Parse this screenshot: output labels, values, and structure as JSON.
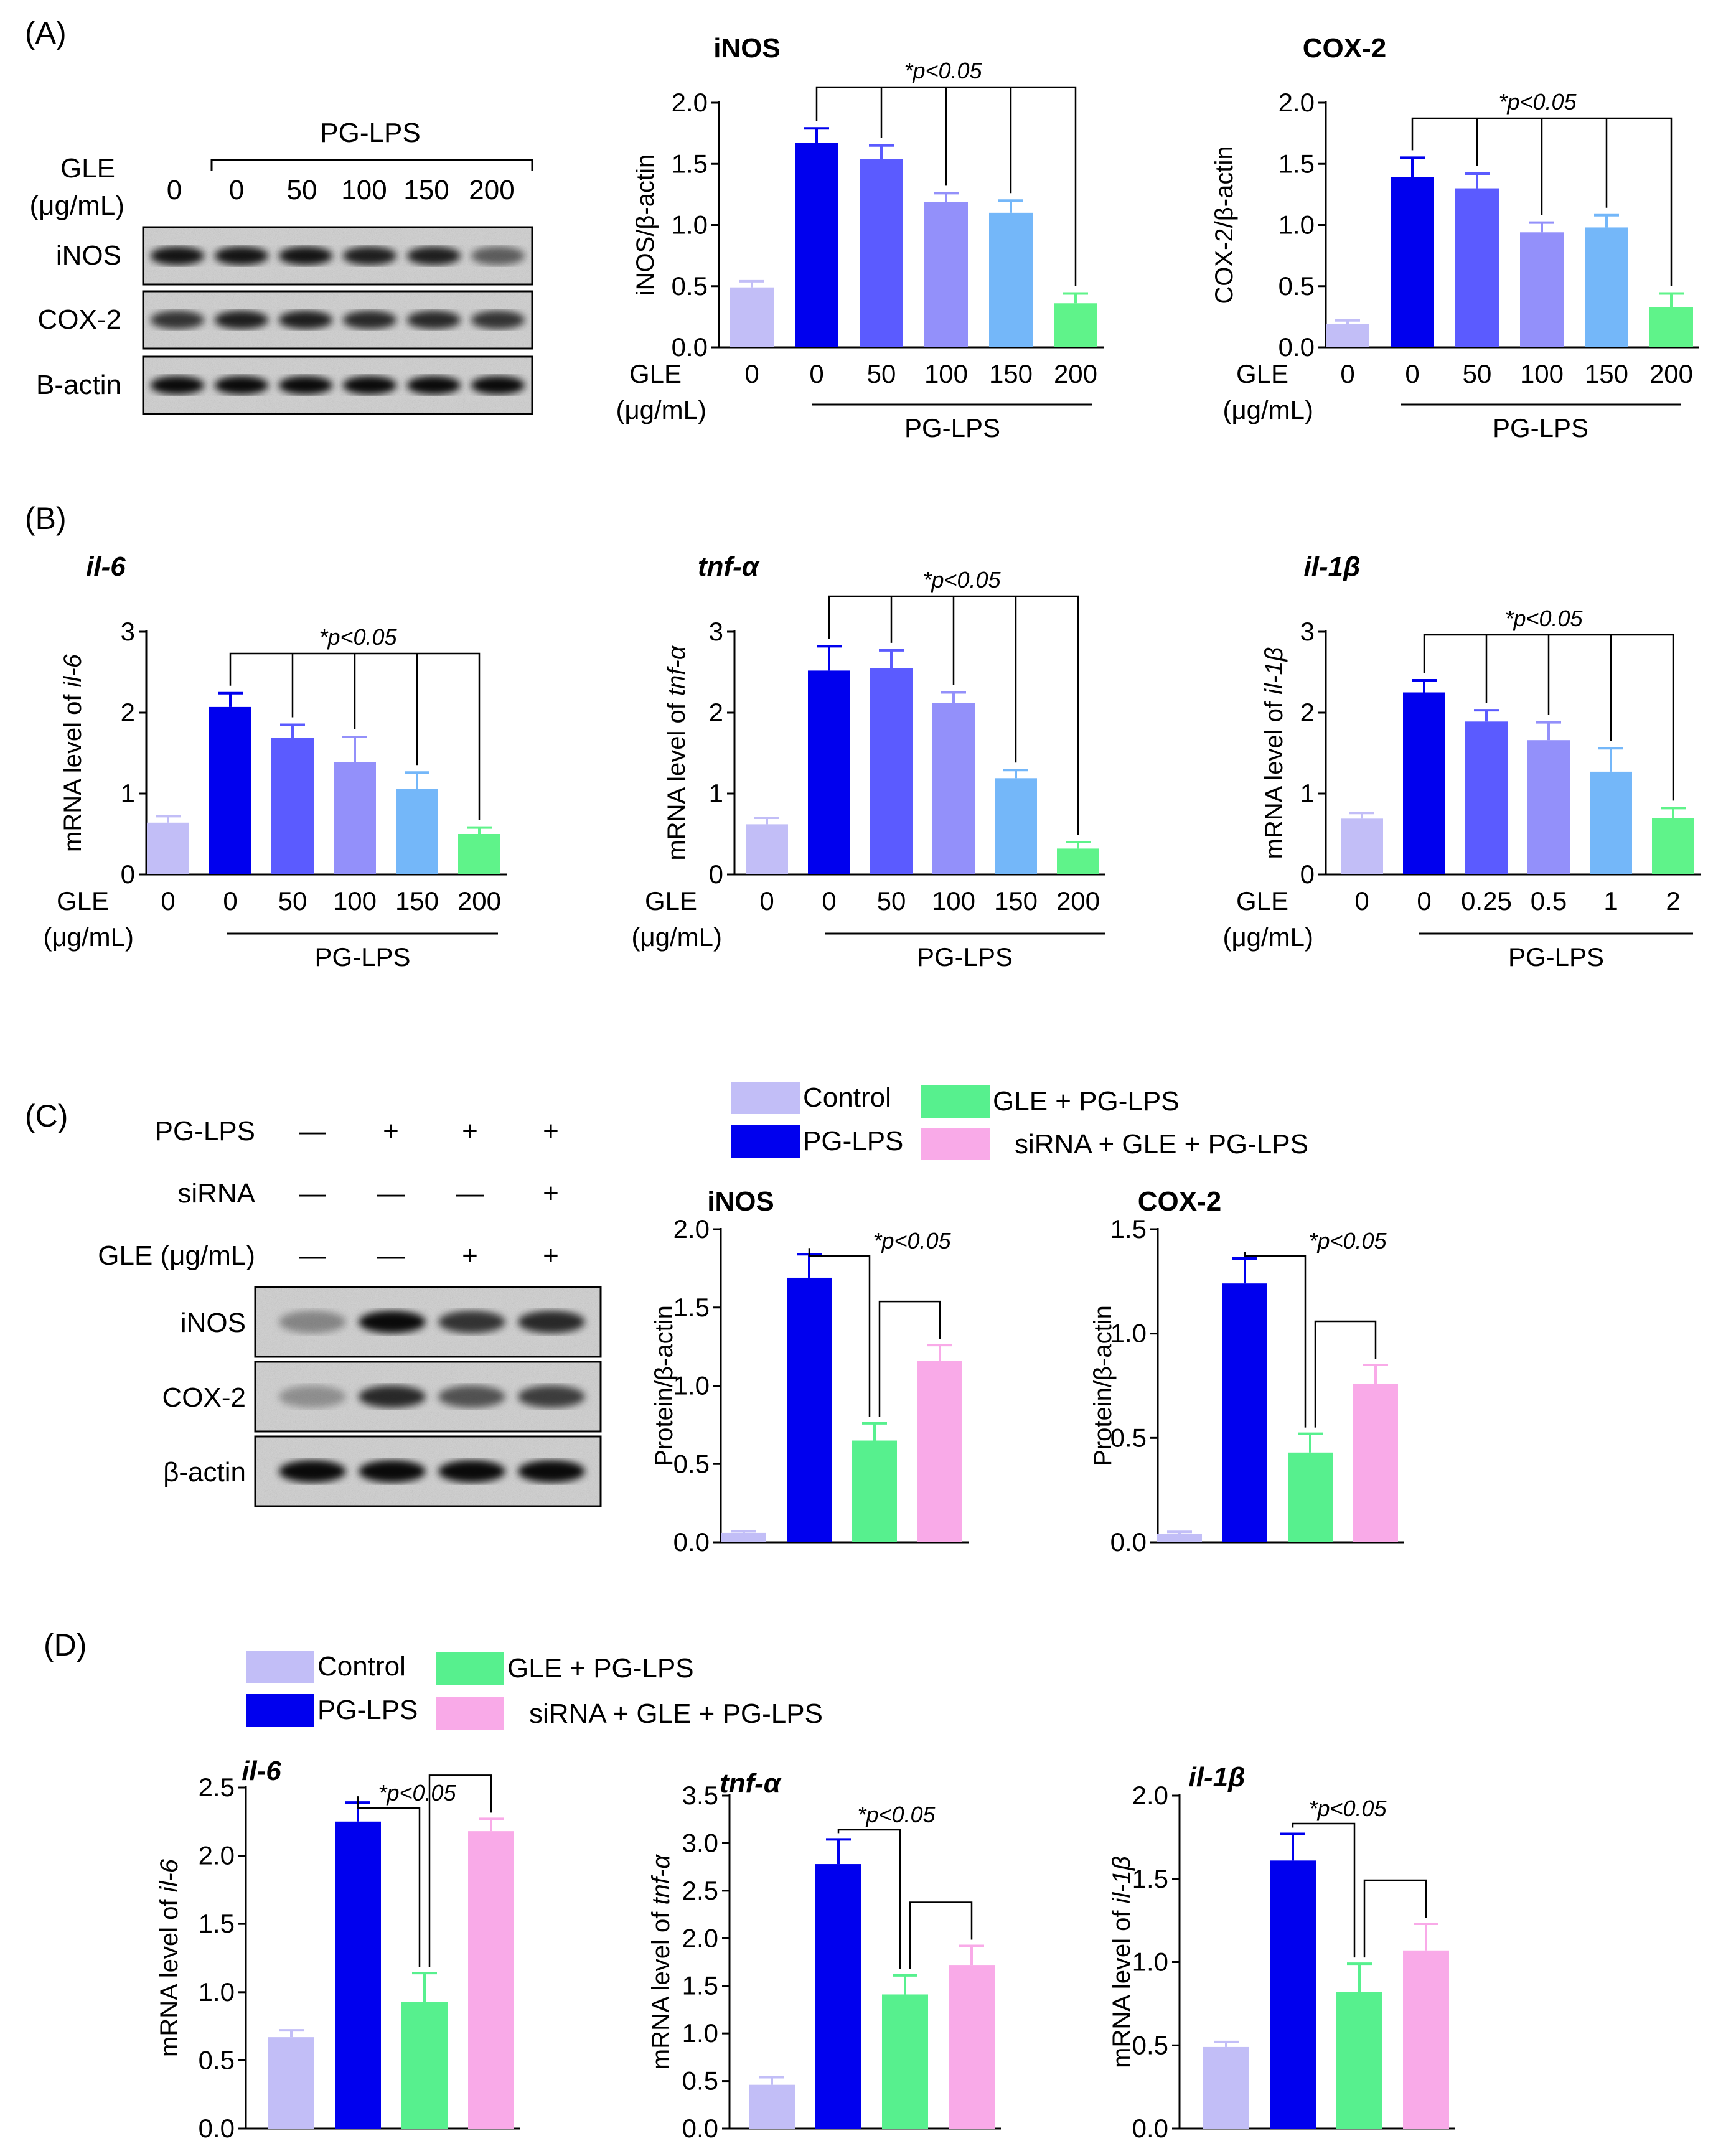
{
  "colors": {
    "control": "#C2BEF7",
    "pglps": "#0000EE",
    "gle50": "#5B5BFF",
    "gle100": "#9390FA",
    "gle150": "#74B7F9",
    "gle200": "#5FF38A",
    "gle_combo": "#57F08E",
    "sirna": "#F9AAE8"
  },
  "panels": {
    "A": "(A)",
    "B": "(B)",
    "C": "(C)",
    "D": "(D)"
  },
  "blotA": {
    "gle_label": "GLE",
    "unit_label": "(μg/mL)",
    "group_label": "PG-LPS",
    "doses": [
      "0",
      "0",
      "50",
      "100",
      "150",
      "200"
    ],
    "rows": [
      "iNOS",
      "COX-2",
      "B-actin"
    ]
  },
  "blotC": {
    "conditions": [
      {
        "label": "PG-LPS",
        "marks": [
          "—",
          "+",
          "+",
          "+"
        ]
      },
      {
        "label": "siRNA",
        "marks": [
          "—",
          "—",
          "—",
          "+"
        ]
      },
      {
        "label": "GLE (μg/mL)",
        "marks": [
          "—",
          "—",
          "+",
          "+"
        ]
      }
    ],
    "rows": [
      "iNOS",
      "COX-2",
      "β-actin"
    ]
  },
  "legendC": {
    "control": "Control",
    "pglps": "PG-LPS",
    "gle": "GLE + PG-LPS",
    "sirna": "siRNA + GLE + PG-LPS"
  },
  "legendD": {
    "control": "Control",
    "pglps": "PG-LPS",
    "gle": "GLE + PG-LPS",
    "sirna": "siRNA + GLE + PG-LPS"
  },
  "chart_data": [
    {
      "id": "A1",
      "type": "bar",
      "title": "iNOS",
      "title_italic": false,
      "ylabel": "iNOS/β-actin",
      "ylim": [
        0,
        2.0
      ],
      "yticks": [
        "0.0",
        "0.5",
        "1.0",
        "1.5",
        "2.0"
      ],
      "xprefix": "GLE",
      "xunit": "(μg/mL)",
      "group_label": "PG-LPS",
      "categories": [
        "0",
        "0",
        "50",
        "100",
        "150",
        "200"
      ],
      "values": [
        0.49,
        1.67,
        1.54,
        1.19,
        1.1,
        0.36
      ],
      "errors": [
        0.05,
        0.12,
        0.11,
        0.07,
        0.1,
        0.08
      ],
      "colors": [
        "control",
        "pglps",
        "gle50",
        "gle100",
        "gle150",
        "gle200"
      ],
      "annotation": "*p<0.05"
    },
    {
      "id": "A2",
      "type": "bar",
      "title": "COX-2",
      "title_italic": false,
      "ylabel": "COX-2/β-actin",
      "ylim": [
        0,
        2.0
      ],
      "yticks": [
        "0.0",
        "0.5",
        "1.0",
        "1.5",
        "2.0"
      ],
      "xprefix": "GLE",
      "xunit": "(μg/mL)",
      "group_label": "PG-LPS",
      "categories": [
        "0",
        "0",
        "50",
        "100",
        "150",
        "200"
      ],
      "values": [
        0.19,
        1.39,
        1.3,
        0.94,
        0.98,
        0.33
      ],
      "errors": [
        0.03,
        0.16,
        0.12,
        0.08,
        0.1,
        0.11
      ],
      "colors": [
        "control",
        "pglps",
        "gle50",
        "gle100",
        "gle150",
        "gle200"
      ],
      "annotation": "*p<0.05"
    },
    {
      "id": "B1",
      "type": "bar",
      "title": "il-6",
      "title_italic": true,
      "ylabel_prefix": "mRNA level of ",
      "ylabel_gene": "il-6",
      "ylim": [
        0,
        3
      ],
      "yticks": [
        "0",
        "1",
        "2",
        "3"
      ],
      "xprefix": "GLE",
      "xunit": "(μg/mL)",
      "group_label": "PG-LPS",
      "categories": [
        "0",
        "0",
        "50",
        "100",
        "150",
        "200"
      ],
      "values": [
        0.64,
        2.07,
        1.69,
        1.39,
        1.06,
        0.5
      ],
      "errors": [
        0.08,
        0.17,
        0.16,
        0.31,
        0.2,
        0.08
      ],
      "colors": [
        "control",
        "pglps",
        "gle50",
        "gle100",
        "gle150",
        "gle200"
      ],
      "annotation": "*p<0.05"
    },
    {
      "id": "B2",
      "type": "bar",
      "title": "tnf-α",
      "title_italic": true,
      "ylabel_prefix": "mRNA level of ",
      "ylabel_gene": "tnf-α",
      "ylim": [
        0,
        3
      ],
      "yticks": [
        "0",
        "1",
        "2",
        "3"
      ],
      "xprefix": "GLE",
      "xunit": "(μg/mL)",
      "group_label": "PG-LPS",
      "categories": [
        "0",
        "0",
        "50",
        "100",
        "150",
        "200"
      ],
      "values": [
        0.62,
        2.52,
        2.55,
        2.12,
        1.19,
        0.32
      ],
      "errors": [
        0.08,
        0.3,
        0.22,
        0.13,
        0.1,
        0.08
      ],
      "colors": [
        "control",
        "pglps",
        "gle50",
        "gle100",
        "gle150",
        "gle200"
      ],
      "annotation": "*p<0.05"
    },
    {
      "id": "B3",
      "type": "bar",
      "title": "il-1β",
      "title_italic": true,
      "ylabel_prefix": "mRNA level of ",
      "ylabel_gene": "il-1β",
      "ylim": [
        0,
        3
      ],
      "yticks": [
        "0",
        "1",
        "2",
        "3"
      ],
      "xprefix": "GLE",
      "xunit": "(μg/mL)",
      "group_label": "PG-LPS",
      "categories": [
        "0",
        "0",
        "0.25",
        "0.5",
        "1",
        "2"
      ],
      "values": [
        0.69,
        2.25,
        1.89,
        1.66,
        1.27,
        0.7
      ],
      "errors": [
        0.07,
        0.15,
        0.14,
        0.22,
        0.29,
        0.12
      ],
      "colors": [
        "control",
        "pglps",
        "gle50",
        "gle100",
        "gle150",
        "gle200"
      ],
      "annotation": "*p<0.05"
    },
    {
      "id": "C1",
      "type": "bar",
      "title": "iNOS",
      "title_italic": false,
      "ylabel": "Protein/β-actin",
      "ylim": [
        0,
        2.0
      ],
      "yticks": [
        "0.0",
        "0.5",
        "1.0",
        "1.5",
        "2.0"
      ],
      "categories": [
        "Control",
        "PG-LPS",
        "GLE + PG-LPS",
        "siRNA + GLE + PG-LPS"
      ],
      "values": [
        0.06,
        1.69,
        0.65,
        1.16
      ],
      "errors": [
        0.01,
        0.15,
        0.11,
        0.1
      ],
      "colors": [
        "control",
        "pglps",
        "gle_combo",
        "sirna"
      ],
      "annotation": "*p<0.05"
    },
    {
      "id": "C2",
      "type": "bar",
      "title": "COX-2",
      "title_italic": false,
      "ylabel": "Protein/β-actin",
      "ylim": [
        0,
        1.5
      ],
      "yticks": [
        "0.0",
        "0.5",
        "1.0",
        "1.5"
      ],
      "categories": [
        "Control",
        "PG-LPS",
        "GLE + PG-LPS",
        "siRNA + GLE + PG-LPS"
      ],
      "values": [
        0.04,
        1.24,
        0.43,
        0.76
      ],
      "errors": [
        0.01,
        0.12,
        0.09,
        0.09
      ],
      "colors": [
        "control",
        "pglps",
        "gle_combo",
        "sirna"
      ],
      "annotation": "*p<0.05"
    },
    {
      "id": "D1",
      "type": "bar",
      "title": "il-6",
      "title_italic": true,
      "ylabel_prefix": "mRNA level of ",
      "ylabel_gene": "il-6",
      "ylim": [
        0,
        2.5
      ],
      "yticks": [
        "0.0",
        "0.5",
        "1.0",
        "1.5",
        "2.0",
        "2.5"
      ],
      "categories": [
        "Control",
        "PG-LPS",
        "GLE + PG-LPS",
        "siRNA + GLE + PG-LPS"
      ],
      "values": [
        0.67,
        2.25,
        0.93,
        2.18
      ],
      "errors": [
        0.05,
        0.14,
        0.21,
        0.09
      ],
      "colors": [
        "control",
        "pglps",
        "gle_combo",
        "sirna"
      ],
      "annotation": "*p<0.05"
    },
    {
      "id": "D2",
      "type": "bar",
      "title": "tnf-α",
      "title_italic": true,
      "ylabel_prefix": "mRNA level of ",
      "ylabel_gene": "tnf-α",
      "ylim": [
        0,
        3.5
      ],
      "yticks": [
        "0.0",
        "0.5",
        "1.0",
        "1.5",
        "2.0",
        "2.5",
        "3.0",
        "3.5"
      ],
      "categories": [
        "Control",
        "PG-LPS",
        "GLE + PG-LPS",
        "siRNA + GLE + PG-LPS"
      ],
      "values": [
        0.46,
        2.78,
        1.41,
        1.72
      ],
      "errors": [
        0.08,
        0.26,
        0.2,
        0.2
      ],
      "colors": [
        "control",
        "pglps",
        "gle_combo",
        "sirna"
      ],
      "annotation": "*p<0.05"
    },
    {
      "id": "D3",
      "type": "bar",
      "title": "il-1β",
      "title_italic": true,
      "ylabel_prefix": "mRNA level of ",
      "ylabel_gene": "il-1β",
      "ylim": [
        0,
        2.0
      ],
      "yticks": [
        "0.0",
        "0.5",
        "1.0",
        "1.5",
        "2.0"
      ],
      "categories": [
        "Control",
        "PG-LPS",
        "GLE + PG-LPS",
        "siRNA + GLE + PG-LPS"
      ],
      "values": [
        0.49,
        1.61,
        0.82,
        1.07
      ],
      "errors": [
        0.03,
        0.16,
        0.17,
        0.16
      ],
      "colors": [
        "control",
        "pglps",
        "gle_combo",
        "sirna"
      ],
      "annotation": "*p<0.05"
    }
  ]
}
